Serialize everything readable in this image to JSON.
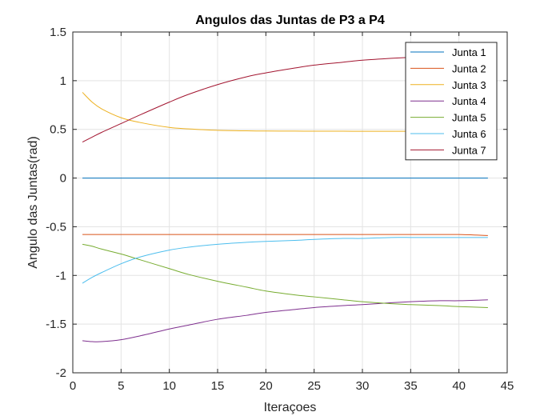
{
  "chart_data": {
    "type": "line",
    "title": "Angulos das Juntas de P3 a P4",
    "xlabel": "Iteraçoes",
    "ylabel": "Angulo das Juntas(rad)",
    "xlim": [
      0,
      45
    ],
    "ylim": [
      -2,
      1.5
    ],
    "xticks": [
      0,
      5,
      10,
      15,
      20,
      25,
      30,
      35,
      40,
      45
    ],
    "xtick_labels": [
      "0",
      "5",
      "10",
      "15",
      "20",
      "25",
      "30",
      "35",
      "40",
      "45"
    ],
    "yticks": [
      -2,
      -1.5,
      -1,
      -0.5,
      0,
      0.5,
      1,
      1.5
    ],
    "ytick_labels": [
      "-2",
      "-1.5",
      "-1",
      "-0.5",
      "0",
      "0.5",
      "1",
      "1.5"
    ],
    "grid": true,
    "legend_position": "top-right",
    "x": [
      1,
      2,
      3,
      5,
      7,
      10,
      12,
      15,
      18,
      20,
      23,
      25,
      28,
      30,
      33,
      35,
      38,
      40,
      43
    ],
    "series": [
      {
        "name": "Junta 1",
        "color": "#0072BD",
        "values": [
          0,
          0,
          0,
          0,
          0,
          0,
          0,
          0,
          0,
          0,
          0,
          0,
          0,
          0,
          0,
          0,
          0,
          0,
          0
        ]
      },
      {
        "name": "Junta 2",
        "color": "#D95319",
        "values": [
          -0.58,
          -0.58,
          -0.58,
          -0.58,
          -0.58,
          -0.58,
          -0.58,
          -0.58,
          -0.58,
          -0.58,
          -0.58,
          -0.58,
          -0.58,
          -0.58,
          -0.58,
          -0.58,
          -0.58,
          -0.58,
          -0.59
        ]
      },
      {
        "name": "Junta 3",
        "color": "#EDB120",
        "values": [
          0.88,
          0.78,
          0.71,
          0.62,
          0.57,
          0.52,
          0.505,
          0.49,
          0.485,
          0.483,
          0.482,
          0.481,
          0.481,
          0.48,
          0.48,
          0.48,
          0.48,
          0.48,
          0.48
        ]
      },
      {
        "name": "Junta 4",
        "color": "#7E2F8E",
        "values": [
          -1.67,
          -1.68,
          -1.68,
          -1.66,
          -1.62,
          -1.55,
          -1.51,
          -1.45,
          -1.41,
          -1.38,
          -1.35,
          -1.33,
          -1.31,
          -1.3,
          -1.28,
          -1.27,
          -1.26,
          -1.26,
          -1.25
        ]
      },
      {
        "name": "Junta 5",
        "color": "#77AC30",
        "values": [
          -0.68,
          -0.7,
          -0.73,
          -0.78,
          -0.84,
          -0.93,
          -0.99,
          -1.06,
          -1.12,
          -1.16,
          -1.2,
          -1.22,
          -1.25,
          -1.27,
          -1.29,
          -1.3,
          -1.31,
          -1.32,
          -1.33
        ]
      },
      {
        "name": "Junta 6",
        "color": "#4DBEEE",
        "values": [
          -1.08,
          -1.02,
          -0.97,
          -0.88,
          -0.81,
          -0.74,
          -0.71,
          -0.68,
          -0.66,
          -0.65,
          -0.64,
          -0.63,
          -0.62,
          -0.62,
          -0.61,
          -0.61,
          -0.61,
          -0.61,
          -0.61
        ]
      },
      {
        "name": "Junta 7",
        "color": "#A2142F",
        "values": [
          0.37,
          0.42,
          0.47,
          0.56,
          0.65,
          0.78,
          0.86,
          0.96,
          1.04,
          1.08,
          1.13,
          1.16,
          1.19,
          1.21,
          1.23,
          1.24,
          1.25,
          1.26,
          1.26
        ]
      }
    ]
  }
}
